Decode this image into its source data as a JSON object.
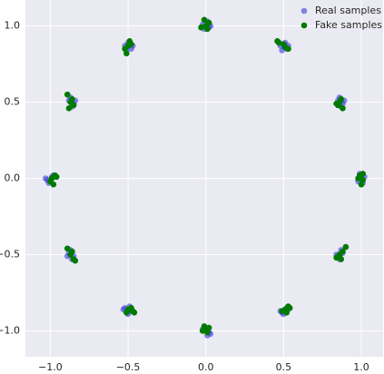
{
  "chart_data": {
    "type": "scatter",
    "xlim": [
      -1.16,
      1.14
    ],
    "ylim": [
      -1.17,
      1.17
    ],
    "xticks": [
      {
        "value": -1,
        "label": "−1.0"
      },
      {
        "value": -0.5,
        "label": "−0.5"
      },
      {
        "value": 0,
        "label": "0.0"
      },
      {
        "value": 0.5,
        "label": "0.5"
      },
      {
        "value": 1,
        "label": "1.0"
      }
    ],
    "yticks": [
      {
        "value": -1,
        "label": "−1.0"
      },
      {
        "value": -0.5,
        "label": "−0.5"
      },
      {
        "value": 0,
        "label": "0.0"
      },
      {
        "value": 0.5,
        "label": "0.5"
      },
      {
        "value": 1,
        "label": "1.0"
      }
    ],
    "grid": true,
    "legend": "upper right",
    "series": [
      {
        "name": "Real samples",
        "color": "#3a3ae0",
        "x": [
          1.02,
          0.98,
          1.01,
          0.99,
          1.0,
          0.88,
          0.85,
          0.87,
          0.86,
          0.89,
          0.52,
          0.48,
          0.51,
          0.49,
          0.53,
          0.02,
          -0.02,
          0.01,
          -0.01,
          0.03,
          -0.48,
          -0.52,
          -0.5,
          -0.51,
          -0.47,
          -0.85,
          -0.88,
          -0.86,
          -0.87,
          -0.84,
          -1.02,
          -0.98,
          -1.01,
          -0.99,
          -1.03,
          -0.88,
          -0.85,
          -0.87,
          -0.86,
          -0.89,
          -0.52,
          -0.48,
          -0.5,
          -0.53,
          -0.49,
          0.02,
          -0.02,
          0.01,
          -0.01,
          0.03,
          0.48,
          0.52,
          0.5,
          0.53,
          0.49,
          0.85,
          0.88,
          0.86,
          0.87,
          0.84
        ],
        "y": [
          0.01,
          -0.02,
          -0.03,
          0.03,
          0.0,
          0.49,
          0.51,
          0.47,
          0.53,
          0.51,
          0.85,
          0.87,
          0.89,
          0.84,
          0.87,
          0.99,
          1.01,
          1.03,
          0.98,
          1.0,
          0.85,
          0.87,
          0.89,
          0.84,
          0.87,
          0.49,
          0.51,
          0.47,
          0.53,
          0.51,
          -0.01,
          0.02,
          -0.03,
          0.01,
          0.0,
          -0.49,
          -0.51,
          -0.47,
          -0.53,
          -0.51,
          -0.85,
          -0.87,
          -0.89,
          -0.86,
          -0.84,
          -1.01,
          -0.99,
          -1.03,
          -0.98,
          -1.02,
          -0.87,
          -0.85,
          -0.89,
          -0.86,
          -0.88,
          -0.51,
          -0.49,
          -0.53,
          -0.47,
          -0.5
        ]
      },
      {
        "name": "Fake samples",
        "color": "#007a00",
        "x": [
          0.99,
          1.01,
          0.98,
          1.0,
          1.01,
          0.86,
          0.88,
          0.85,
          0.87,
          0.84,
          0.5,
          0.47,
          0.53,
          0.51,
          0.46,
          0.0,
          -0.03,
          0.02,
          -0.01,
          0.01,
          -0.5,
          -0.48,
          -0.52,
          -0.51,
          -0.49,
          -0.87,
          -0.85,
          -0.89,
          -0.86,
          -0.88,
          -0.99,
          -0.97,
          -1.0,
          -0.98,
          -0.96,
          -0.87,
          -0.89,
          -0.85,
          -0.86,
          -0.84,
          -0.5,
          -0.47,
          -0.51,
          -0.48,
          -0.46,
          0.0,
          -0.02,
          0.02,
          0.01,
          -0.01,
          0.51,
          0.53,
          0.49,
          0.52,
          0.54,
          0.86,
          0.88,
          0.84,
          0.9,
          0.87
        ],
        "y": [
          0.02,
          -0.01,
          0.0,
          -0.04,
          0.03,
          0.5,
          0.46,
          0.48,
          0.52,
          0.49,
          0.88,
          0.89,
          0.85,
          0.86,
          0.9,
          1.0,
          0.99,
          1.02,
          1.04,
          0.98,
          0.87,
          0.88,
          0.85,
          0.82,
          0.9,
          0.5,
          0.48,
          0.55,
          0.52,
          0.46,
          0.0,
          0.02,
          -0.02,
          -0.04,
          0.01,
          -0.5,
          -0.46,
          -0.53,
          -0.48,
          -0.54,
          -0.86,
          -0.87,
          -0.88,
          -0.85,
          -0.88,
          -0.99,
          -1.0,
          -0.98,
          -1.01,
          -0.97,
          -0.86,
          -0.84,
          -0.87,
          -0.88,
          -0.85,
          -0.5,
          -0.48,
          -0.52,
          -0.45,
          -0.53
        ]
      }
    ]
  }
}
